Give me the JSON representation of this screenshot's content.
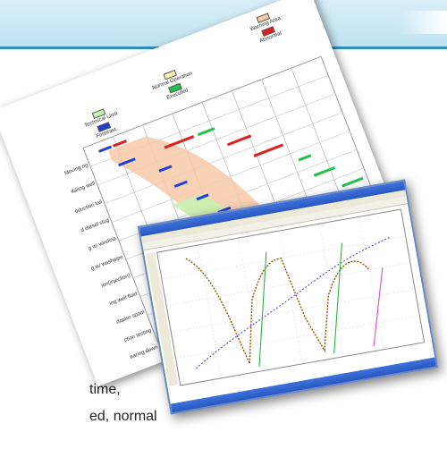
{
  "caption": {
    "line1": "time,",
    "line2": "ed, normal"
  },
  "chart_data": {
    "type": "bar",
    "legend": [
      "Technical Limit",
      "Forecast",
      "Normal Operation",
      "Executed",
      "Warning Area",
      "Abnormal"
    ],
    "categories": [
      "Moving rig",
      "Killing well",
      "oduction tail",
      "d diesel slug",
      "g w/ wireline",
      "g w/ washpipe",
      "ion(injection)",
      "ing well fluid",
      "dapter spool",
      "ction testing",
      "earing down"
    ],
    "colors": {
      "technical_limit": "#c8f0b0",
      "forecast": "#1f3fd6",
      "normal_operation": "#fff7b0",
      "executed": "#22c34a",
      "warning_area": "#f7c9a8",
      "abnormal": "#e01f1f"
    }
  }
}
